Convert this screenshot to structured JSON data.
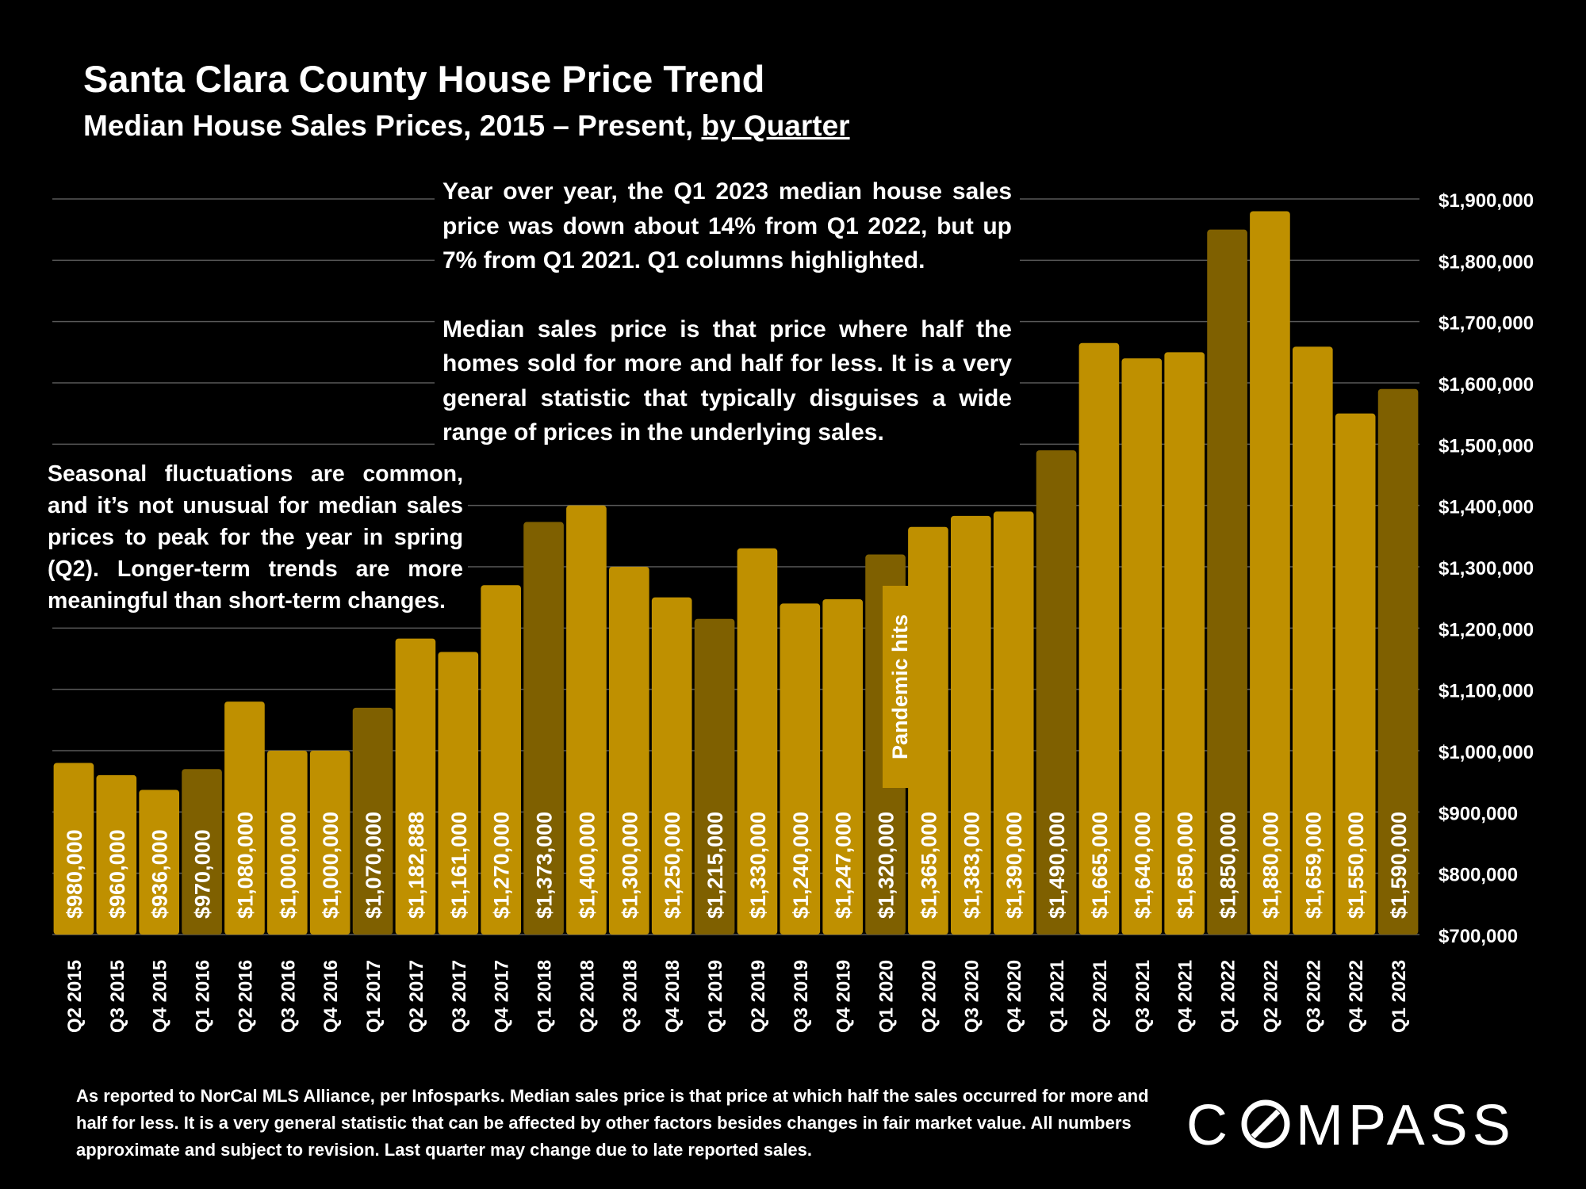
{
  "header": {
    "title": "Santa Clara County House Price Trend",
    "subtitle_main": "Median House Sales Prices, 2015 – Present, ",
    "subtitle_link": "by Quarter"
  },
  "notes": {
    "top_p1": "Year over year, the Q1 2023 median house sales price was down about 14% from Q1 2022, but up 7% from Q1 2021. Q1 columns highlighted.",
    "top_p2": "Median sales price is that price where half the homes sold for more and half for less. It is a very general statistic that typically disguises a wide range of prices in the underlying sales.",
    "left": "Seasonal fluctuations are common, and it’s not unusual for median sales prices to peak for the year in spring (Q2). Longer-term trends are more meaningful than short-term changes.",
    "pandemic": "Pandemic hits"
  },
  "footnote": "As reported to NorCal MLS Alliance, per Infosparks. Median sales price is that price at which half the sales occurred for more and half for less. It is a very general statistic that can be affected by other factors besides changes in fair market value. All numbers approximate and subject to revision. Last quarter may change due to late reported sales.",
  "logo": {
    "text": "COMPASS"
  },
  "colors": {
    "regular_bar": "#BF9000",
    "q1_bar": "#7F6000",
    "background": "#000000",
    "gridline": "#595959"
  },
  "chart_data": {
    "type": "bar",
    "title": "Santa Clara County House Price Trend",
    "subtitle": "Median House Sales Prices, 2015 – Present, by Quarter",
    "categories": [
      "Q2 2015",
      "Q3 2015",
      "Q4 2015",
      "Q1 2016",
      "Q2 2016",
      "Q3 2016",
      "Q4 2016",
      "Q1 2017",
      "Q2 2017",
      "Q3 2017",
      "Q4 2017",
      "Q1 2018",
      "Q2 2018",
      "Q3 2018",
      "Q4 2018",
      "Q1 2019",
      "Q2 2019",
      "Q3 2019",
      "Q4 2019",
      "Q1 2020",
      "Q2 2020",
      "Q3 2020",
      "Q4 2020",
      "Q1 2021",
      "Q2 2021",
      "Q3 2021",
      "Q4 2021",
      "Q1 2022",
      "Q2 2022",
      "Q3 2022",
      "Q4 2022",
      "Q1 2023"
    ],
    "values": [
      980000,
      960000,
      936000,
      970000,
      1080000,
      1000000,
      1000000,
      1070000,
      1182888,
      1161000,
      1270000,
      1373000,
      1400000,
      1300000,
      1250000,
      1215000,
      1330000,
      1240000,
      1247000,
      1320000,
      1365000,
      1383000,
      1390000,
      1490000,
      1665000,
      1640000,
      1650000,
      1850000,
      1880000,
      1659000,
      1550000,
      1590000
    ],
    "data_labels": [
      "$980,000",
      "$960,000",
      "$936,000",
      "$970,000",
      "$1,080,000",
      "$1,000,000",
      "$1,000,000",
      "$1,070,000",
      "$1,182,888",
      "$1,161,000",
      "$1,270,000",
      "$1,373,000",
      "$1,400,000",
      "$1,300,000",
      "$1,250,000",
      "$1,215,000",
      "$1,330,000",
      "$1,240,000",
      "$1,247,000",
      "$1,320,000",
      "$1,365,000",
      "$1,383,000",
      "$1,390,000",
      "$1,490,000",
      "$1,665,000",
      "$1,640,000",
      "$1,650,000",
      "$1,850,000",
      "$1,880,000",
      "$1,659,000",
      "$1,550,000",
      "$1,590,000"
    ],
    "highlighted_q1": [
      false,
      false,
      false,
      true,
      false,
      false,
      false,
      true,
      false,
      false,
      false,
      true,
      false,
      false,
      false,
      true,
      false,
      false,
      false,
      true,
      false,
      false,
      false,
      true,
      false,
      false,
      false,
      true,
      false,
      false,
      false,
      true
    ],
    "ylim": [
      700000,
      1900000
    ],
    "y_axis_position": "right",
    "y_ticks": [
      700000,
      800000,
      900000,
      1000000,
      1100000,
      1200000,
      1300000,
      1400000,
      1500000,
      1600000,
      1700000,
      1800000,
      1900000
    ],
    "y_tick_labels": [
      "$700,000",
      "$800,000",
      "$900,000",
      "$1,000,000",
      "$1,100,000",
      "$1,200,000",
      "$1,300,000",
      "$1,400,000",
      "$1,500,000",
      "$1,600,000",
      "$1,700,000",
      "$1,800,000",
      "$1,900,000"
    ],
    "grid": true,
    "legend": "none"
  }
}
